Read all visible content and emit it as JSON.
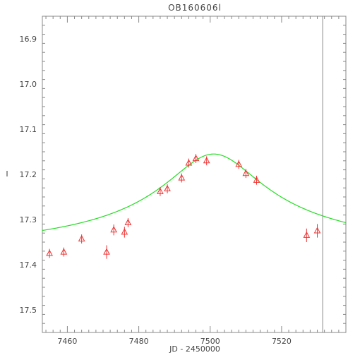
{
  "chart_data": {
    "type": "scatter",
    "title": "OB160606l",
    "xlabel": "JD - 2450000",
    "ylabel": "I",
    "xlim": [
      7453,
      7538
    ],
    "ylim": [
      17.55,
      16.85
    ],
    "y_inverted": true,
    "x_ticks": [
      7460,
      7480,
      7500,
      7520
    ],
    "y_ticks": [
      16.9,
      17.0,
      17.1,
      17.2,
      17.3,
      17.4,
      17.5
    ],
    "vertical_line_x": 7531.5,
    "model_curve": {
      "color": "#22dd22",
      "peak_x": 7501,
      "peak_y": 17.155,
      "baseline_y": 17.39,
      "tE": 14
    },
    "points": [
      {
        "x": 7455,
        "y": 17.375,
        "err": 0.01
      },
      {
        "x": 7459,
        "y": 17.372,
        "err": 0.01
      },
      {
        "x": 7464,
        "y": 17.343,
        "err": 0.01
      },
      {
        "x": 7471,
        "y": 17.372,
        "err": 0.015
      },
      {
        "x": 7473,
        "y": 17.323,
        "err": 0.012
      },
      {
        "x": 7476,
        "y": 17.328,
        "err": 0.012
      },
      {
        "x": 7477,
        "y": 17.307,
        "err": 0.01
      },
      {
        "x": 7486,
        "y": 17.238,
        "err": 0.01
      },
      {
        "x": 7488,
        "y": 17.232,
        "err": 0.01
      },
      {
        "x": 7492,
        "y": 17.208,
        "err": 0.01
      },
      {
        "x": 7494,
        "y": 17.175,
        "err": 0.01
      },
      {
        "x": 7496,
        "y": 17.165,
        "err": 0.01
      },
      {
        "x": 7499,
        "y": 17.17,
        "err": 0.01
      },
      {
        "x": 7508,
        "y": 17.178,
        "err": 0.01
      },
      {
        "x": 7510,
        "y": 17.198,
        "err": 0.01
      },
      {
        "x": 7513,
        "y": 17.213,
        "err": 0.01
      },
      {
        "x": 7527,
        "y": 17.335,
        "err": 0.015
      },
      {
        "x": 7530,
        "y": 17.325,
        "err": 0.015
      }
    ],
    "point_color": "#ee3333",
    "axis_color": "#888888"
  }
}
